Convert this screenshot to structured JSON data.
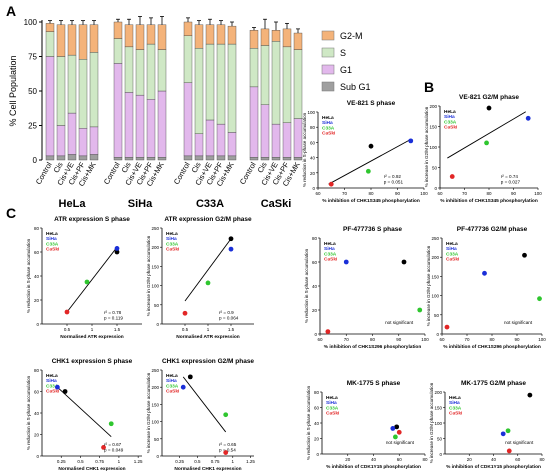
{
  "figure": {
    "panel_labels": [
      "A",
      "B",
      "C"
    ],
    "colors": {
      "g2m": "#f4b37a",
      "s": "#cfe8c5",
      "g1": "#e2b8ec",
      "subg1": "#9f9f9f",
      "hela": "#000000",
      "siha": "#1a2fd8",
      "c33a": "#2fc62f",
      "caski": "#e22626",
      "fit": "#000000"
    }
  },
  "chart_data": [
    {
      "id": "A",
      "type": "bar",
      "stacked": true,
      "ylabel": "% Cell Population",
      "ylim": [
        0,
        100
      ],
      "yticks": [
        0,
        25,
        50,
        75,
        100
      ],
      "categories": [
        "Control",
        "Cis",
        "Cis+VE",
        "Cis+PF",
        "Cis+MK"
      ],
      "groups": [
        "HeLa",
        "SiHa",
        "C33A",
        "CaSki"
      ],
      "legend": [
        "G2-M",
        "S",
        "G1",
        "Sub G1"
      ],
      "data": [
        {
          "group": "HeLa",
          "subg1": [
            3,
            3,
            4,
            3,
            4
          ],
          "g1": [
            72,
            22,
            30,
            20,
            20
          ],
          "s": [
            18,
            50,
            42,
            50,
            54
          ],
          "g2m": [
            6,
            23,
            22,
            25,
            20
          ],
          "err": [
            2,
            3,
            3,
            3,
            3
          ]
        },
        {
          "group": "SiHa",
          "subg1": [
            2,
            2,
            2,
            2,
            2
          ],
          "g1": [
            68,
            47,
            45,
            42,
            48
          ],
          "s": [
            18,
            33,
            33,
            40,
            30
          ],
          "g2m": [
            12,
            16,
            18,
            14,
            18
          ],
          "err": [
            2,
            4,
            6,
            5,
            6
          ]
        },
        {
          "group": "C33A",
          "subg1": [
            3,
            3,
            3,
            3,
            3
          ],
          "g1": [
            53,
            16,
            26,
            23,
            17
          ],
          "s": [
            34,
            62,
            55,
            58,
            64
          ],
          "g2m": [
            10,
            17,
            14,
            14,
            13
          ],
          "err": [
            3,
            3,
            4,
            3,
            3
          ]
        },
        {
          "group": "CaSki",
          "subg1": [
            2,
            2,
            2,
            2,
            2
          ],
          "g1": [
            51,
            38,
            24,
            25,
            28
          ],
          "s": [
            28,
            43,
            60,
            55,
            50
          ],
          "g2m": [
            13,
            12,
            8,
            13,
            12
          ],
          "err": [
            2,
            7,
            6,
            4,
            3
          ]
        }
      ]
    },
    {
      "id": "B1",
      "type": "scatter",
      "title": "VE-821 S phase",
      "xlabel": "% inhibition of CHK1S345 phosphorylation",
      "ylabel": "% reduction in S-phase accumulation",
      "xlim": [
        60,
        100
      ],
      "xticks": [
        60,
        70,
        80,
        90,
        100
      ],
      "ylim": [
        0,
        100
      ],
      "yticks": [
        0,
        20,
        40,
        60,
        80,
        100
      ],
      "points": [
        {
          "name": "HeLa",
          "x": 80,
          "y": 55
        },
        {
          "name": "SiHa",
          "x": 95,
          "y": 62
        },
        {
          "name": "C33A",
          "x": 79,
          "y": 22
        },
        {
          "name": "CaSki",
          "x": 65,
          "y": 5
        }
      ],
      "fit": [
        [
          64,
          5
        ],
        [
          95,
          64
        ]
      ],
      "stats": [
        "r² = 0.92",
        "p = 0.051"
      ]
    },
    {
      "id": "B2",
      "type": "scatter",
      "title": "VE-821 G2/M phase",
      "xlabel": "% inhibition of CHK1S345 phosphorylation",
      "ylabel": "% increase in G2/M phase accumulation",
      "xlim": [
        60,
        100
      ],
      "xticks": [
        60,
        70,
        80,
        90,
        100
      ],
      "ylim": [
        0,
        200
      ],
      "yticks": [
        0,
        50,
        100,
        150,
        200
      ],
      "points": [
        {
          "name": "HeLa",
          "x": 80,
          "y": 195
        },
        {
          "name": "SiHa",
          "x": 96,
          "y": 170
        },
        {
          "name": "C33A",
          "x": 79,
          "y": 110
        },
        {
          "name": "CaSki",
          "x": 65,
          "y": 28
        }
      ],
      "fit": [
        [
          63,
          73
        ],
        [
          95,
          186
        ]
      ],
      "stats": [
        "r² = 0.74",
        "p = 0.027"
      ]
    },
    {
      "id": "C1",
      "type": "scatter",
      "title": "ATR expression S phase",
      "xlabel": "Normalised ATR expression",
      "ylabel": "% reduction in S-phase accumulation",
      "xlim": [
        0,
        2.0
      ],
      "xticks": [
        0.5,
        1.0,
        1.5
      ],
      "ylim": [
        0,
        80
      ],
      "yticks": [
        0,
        20,
        40,
        60,
        80
      ],
      "points": [
        {
          "name": "HeLa",
          "x": 1.5,
          "y": 60
        },
        {
          "name": "SiHa",
          "x": 1.5,
          "y": 63
        },
        {
          "name": "C33A",
          "x": 0.9,
          "y": 35
        },
        {
          "name": "CaSki",
          "x": 0.5,
          "y": 10
        }
      ],
      "fit": [
        [
          0.5,
          10
        ],
        [
          1.5,
          64
        ]
      ],
      "stats": [
        "r² = 0.78",
        "p = 0.119"
      ]
    },
    {
      "id": "C2",
      "type": "scatter",
      "title": "ATR expression G2/M phase",
      "xlabel": "Normalised ATR expression",
      "ylabel": "% increase in G2/M phase accumulation",
      "xlim": [
        0,
        2.0
      ],
      "xticks": [
        0.5,
        1.0,
        1.5
      ],
      "ylim": [
        0,
        250
      ],
      "yticks": [
        0,
        50,
        100,
        150,
        200,
        250
      ],
      "points": [
        {
          "name": "HeLa",
          "x": 1.5,
          "y": 222
        },
        {
          "name": "SiHa",
          "x": 1.5,
          "y": 195
        },
        {
          "name": "C33A",
          "x": 1.0,
          "y": 107
        },
        {
          "name": "CaSki",
          "x": 0.5,
          "y": 28
        }
      ],
      "fit": [
        [
          0.5,
          60
        ],
        [
          1.5,
          222
        ]
      ],
      "stats": [
        "r² = 0.9",
        "p = 0.064"
      ]
    },
    {
      "id": "C3",
      "type": "scatter",
      "title": "PF-477736 S phase",
      "xlabel": "% inhibition of CHK1S296 phosphorylation",
      "ylabel": "% reduction in S-phase accumulation",
      "xlim": [
        60,
        100
      ],
      "xticks": [
        60,
        70,
        80,
        90,
        100
      ],
      "ylim": [
        0,
        80
      ],
      "yticks": [
        0,
        20,
        40,
        60,
        80
      ],
      "points": [
        {
          "name": "HeLa",
          "x": 92,
          "y": 60
        },
        {
          "name": "SiHa",
          "x": 70,
          "y": 60
        },
        {
          "name": "C33A",
          "x": 98,
          "y": 20
        },
        {
          "name": "CaSki",
          "x": 63,
          "y": 2
        }
      ],
      "fit": [],
      "stats": [
        "not significant"
      ]
    },
    {
      "id": "C4",
      "type": "scatter",
      "title": "PF-477736 G2/M phase",
      "xlabel": "% inhibition of CHK1S296 phosphorylation",
      "ylabel": "% increase in G2/M phase accumulation",
      "xlim": [
        60,
        100
      ],
      "xticks": [
        60,
        70,
        80,
        90,
        100
      ],
      "ylim": [
        0,
        250
      ],
      "yticks": [
        0,
        50,
        100,
        150,
        200,
        250
      ],
      "points": [
        {
          "name": "HeLa",
          "x": 93,
          "y": 205
        },
        {
          "name": "SiHa",
          "x": 77,
          "y": 158
        },
        {
          "name": "C33A",
          "x": 99,
          "y": 92
        },
        {
          "name": "CaSki",
          "x": 62,
          "y": 18
        }
      ],
      "fit": [],
      "stats": [
        "not significant"
      ]
    },
    {
      "id": "C5",
      "type": "scatter",
      "title": "CHK1 expression S phase",
      "xlabel": "Normalised CHK1 expression",
      "ylabel": "% reduction in S-phase accumulation",
      "xlim": [
        0,
        1.3
      ],
      "xticks": [
        0.25,
        0.5,
        0.75,
        1.0,
        1.25
      ],
      "ylim": [
        0,
        80
      ],
      "yticks": [
        0,
        20,
        40,
        60,
        80
      ],
      "points": [
        {
          "name": "HeLa",
          "x": 0.3,
          "y": 60
        },
        {
          "name": "SiHa",
          "x": 0.2,
          "y": 64
        },
        {
          "name": "C33A",
          "x": 0.9,
          "y": 30
        },
        {
          "name": "CaSki",
          "x": 0.8,
          "y": 8
        }
      ],
      "fit": [
        [
          0.2,
          64
        ],
        [
          0.9,
          18
        ]
      ],
      "stats": [
        "r² = 0.67",
        "p = 0.049"
      ]
    },
    {
      "id": "C6",
      "type": "scatter",
      "title": "CHK1 expression G2/M phase",
      "xlabel": "Normalised CHK1 expression",
      "ylabel": "% increase in G2/M phase accumulation",
      "xlim": [
        0,
        1.3
      ],
      "xticks": [
        0.25,
        0.5,
        0.75,
        1.0,
        1.25
      ],
      "ylim": [
        0,
        250
      ],
      "yticks": [
        0,
        50,
        100,
        150,
        200,
        250
      ],
      "points": [
        {
          "name": "HeLa",
          "x": 0.4,
          "y": 230
        },
        {
          "name": "SiHa",
          "x": 0.3,
          "y": 200
        },
        {
          "name": "C33A",
          "x": 0.9,
          "y": 120
        },
        {
          "name": "CaSki",
          "x": 0.9,
          "y": 10
        }
      ],
      "fit": [
        [
          0.3,
          230
        ],
        [
          0.9,
          70
        ]
      ],
      "stats": [
        "r² = 0.65",
        "p = 0.54"
      ]
    },
    {
      "id": "C7",
      "type": "scatter",
      "title": "MK-1775 S phase",
      "xlabel": "% inhibition of CDK1Y15 phosphorylation",
      "ylabel": "% reduction in S-phase accumulation",
      "xlim": [
        0,
        80
      ],
      "xticks": [
        20,
        40,
        60,
        80
      ],
      "ylim": [
        0,
        80
      ],
      "yticks": [
        0,
        20,
        40,
        60,
        80
      ],
      "points": [
        {
          "name": "HeLa",
          "x": 58,
          "y": 35
        },
        {
          "name": "SiHa",
          "x": 55,
          "y": 33
        },
        {
          "name": "C33A",
          "x": 57,
          "y": 22
        },
        {
          "name": "CaSki",
          "x": 60,
          "y": 28
        }
      ],
      "fit": [],
      "stats": [
        "not significant"
      ]
    },
    {
      "id": "C8",
      "type": "scatter",
      "title": "MK-1775 G2/M phase",
      "xlabel": "% inhibition of CDK1Y15 phosphorylation",
      "ylabel": "% increase in G2/M phase accumulation",
      "xlim": [
        0,
        80
      ],
      "xticks": [
        20,
        40,
        60,
        80
      ],
      "ylim": [
        0,
        200
      ],
      "yticks": [
        0,
        50,
        100,
        150,
        200
      ],
      "points": [
        {
          "name": "HeLa",
          "x": 70,
          "y": 190
        },
        {
          "name": "SiHa",
          "x": 48,
          "y": 65
        },
        {
          "name": "C33A",
          "x": 52,
          "y": 75
        },
        {
          "name": "CaSki",
          "x": 53,
          "y": 10
        }
      ],
      "fit": [],
      "stats": [
        "not significant"
      ]
    }
  ]
}
